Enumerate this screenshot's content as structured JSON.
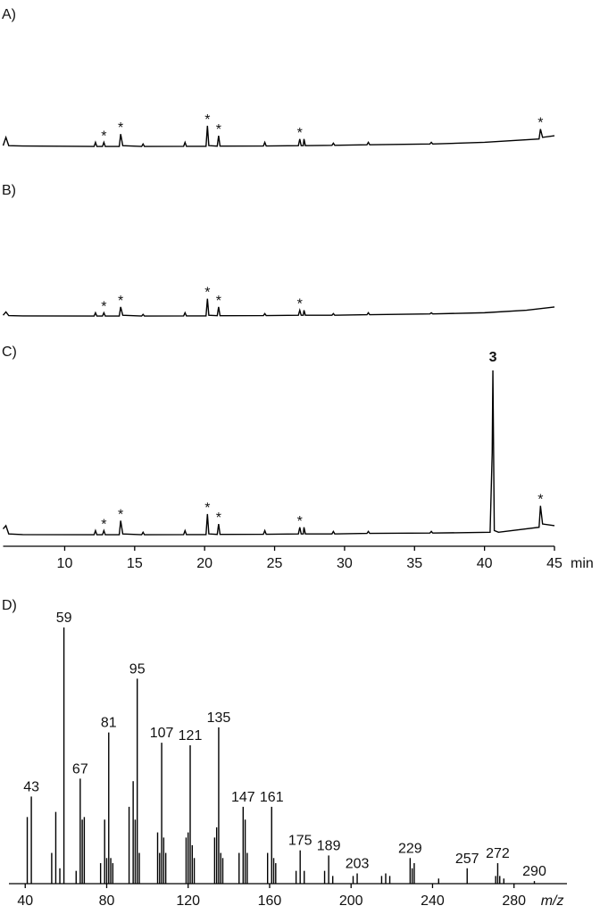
{
  "chart_data": [
    {
      "type": "line",
      "title": "A)",
      "xlim": [
        5.6,
        45
      ],
      "ylim": [
        0,
        100
      ],
      "x": [
        5.6,
        5.8,
        6.0,
        7,
        12.1,
        12.2,
        12.3,
        12.7,
        12.8,
        12.9,
        13.9,
        14.0,
        14.15,
        15.5,
        15.6,
        15.7,
        18.5,
        18.6,
        18.7,
        20.1,
        20.2,
        20.3,
        20.9,
        21.0,
        21.1,
        24.2,
        24.3,
        24.4,
        26.7,
        26.8,
        26.9,
        27.05,
        27.1,
        27.2,
        29.1,
        29.2,
        29.3,
        31.6,
        31.7,
        31.8,
        36.1,
        36.2,
        36.3,
        40,
        43.9,
        44.0,
        44.15,
        45
      ],
      "values": [
        1,
        6,
        1,
        0.8,
        0.5,
        3,
        0.5,
        0.5,
        3,
        0.5,
        0.5,
        8,
        1,
        0.5,
        2,
        0.5,
        0.6,
        3,
        0.6,
        0.6,
        13,
        1,
        0.7,
        7,
        0.7,
        0.8,
        3,
        0.8,
        1,
        5,
        1,
        1,
        5,
        1,
        1.2,
        2.5,
        1.2,
        1.5,
        3,
        1.5,
        2,
        3,
        2,
        3,
        5,
        11,
        6,
        7
      ],
      "color": "#000000",
      "annotations": [
        {
          "text": "*",
          "x": 12.8
        },
        {
          "text": "*",
          "x": 14.0
        },
        {
          "text": "*",
          "x": 20.2
        },
        {
          "text": "*",
          "x": 21.0
        },
        {
          "text": "*",
          "x": 26.8
        },
        {
          "text": "*",
          "x": 44.0
        }
      ]
    },
    {
      "type": "line",
      "title": "B)",
      "xlim": [
        5.6,
        45
      ],
      "ylim": [
        0,
        100
      ],
      "x": [
        5.6,
        5.8,
        6.0,
        7,
        12.1,
        12.2,
        12.3,
        12.7,
        12.8,
        12.9,
        13.9,
        14.0,
        14.15,
        15.5,
        15.6,
        15.7,
        18.5,
        18.6,
        18.7,
        20.1,
        20.2,
        20.3,
        20.9,
        21.0,
        21.1,
        24.2,
        24.3,
        24.4,
        26.7,
        26.8,
        26.9,
        27.05,
        27.1,
        27.2,
        29.1,
        29.2,
        29.3,
        31.6,
        31.7,
        31.8,
        36.1,
        36.2,
        36.3,
        40,
        43,
        45
      ],
      "values": [
        1,
        3,
        0.8,
        0.6,
        0.5,
        2.5,
        0.5,
        0.5,
        2.5,
        0.5,
        0.5,
        6,
        1,
        0.5,
        1.5,
        0.5,
        0.6,
        2.5,
        0.6,
        0.6,
        11,
        1,
        0.7,
        6,
        0.7,
        0.8,
        2,
        0.8,
        1,
        4,
        1,
        1,
        4,
        1,
        1,
        2,
        1,
        1.3,
        2.5,
        1.3,
        1.8,
        2.5,
        1.8,
        2.5,
        4,
        6
      ],
      "color": "#000000",
      "annotations": [
        {
          "text": "*",
          "x": 12.8
        },
        {
          "text": "*",
          "x": 14.0
        },
        {
          "text": "*",
          "x": 20.2
        },
        {
          "text": "*",
          "x": 21.0
        },
        {
          "text": "*",
          "x": 26.8
        }
      ]
    },
    {
      "type": "line",
      "title": "C)",
      "xlim": [
        5.6,
        45
      ],
      "ylim": [
        0,
        100
      ],
      "xticks": [
        10,
        15,
        20,
        25,
        30,
        35,
        40,
        45
      ],
      "xlabel": "min",
      "x": [
        5.6,
        5.8,
        6.0,
        7,
        12.1,
        12.2,
        12.3,
        12.7,
        12.8,
        12.9,
        13.9,
        14.0,
        14.15,
        15.5,
        15.6,
        15.7,
        18.5,
        18.6,
        18.7,
        20.1,
        20.2,
        20.3,
        20.9,
        21.0,
        21.1,
        24.2,
        24.3,
        24.4,
        26.7,
        26.8,
        26.9,
        27.05,
        27.1,
        27.2,
        29.1,
        29.2,
        29.3,
        31.6,
        31.7,
        31.8,
        36.1,
        36.2,
        36.3,
        40.4,
        40.55,
        40.6,
        40.7,
        41,
        43.9,
        44.0,
        44.15,
        45
      ],
      "values": [
        4,
        6,
        1,
        0.6,
        0.5,
        3,
        0.5,
        0.5,
        3,
        0.5,
        0.5,
        9,
        1,
        0.5,
        2,
        0.5,
        0.6,
        3,
        0.6,
        0.6,
        13,
        1,
        0.7,
        7,
        0.7,
        0.8,
        3,
        0.8,
        1,
        5,
        1,
        1,
        5,
        1,
        1,
        2.5,
        1,
        1.3,
        2.5,
        1.3,
        1.5,
        2.5,
        1.5,
        2,
        50,
        100,
        3,
        2,
        5,
        18,
        7,
        6
      ],
      "color": "#000000",
      "annotations": [
        {
          "text": "*",
          "x": 12.8
        },
        {
          "text": "*",
          "x": 14.0
        },
        {
          "text": "*",
          "x": 20.2
        },
        {
          "text": "*",
          "x": 21.0
        },
        {
          "text": "*",
          "x": 26.8
        },
        {
          "text": "3",
          "x": 40.6,
          "bold": true
        },
        {
          "text": "*",
          "x": 44.0
        }
      ]
    },
    {
      "type": "bar",
      "title": "D)",
      "xlim": [
        32,
        306
      ],
      "ylim": [
        0,
        100
      ],
      "xticks": [
        40,
        80,
        120,
        160,
        200,
        240,
        280
      ],
      "xlabel": "m/z",
      "color": "#000000",
      "x": [
        41,
        43,
        53,
        55,
        57,
        59,
        65,
        67,
        68,
        69,
        77,
        79,
        80,
        81,
        82,
        83,
        91,
        93,
        94,
        95,
        96,
        105,
        106,
        107,
        108,
        109,
        119,
        120,
        121,
        122,
        123,
        133,
        134,
        135,
        136,
        137,
        145,
        147,
        148,
        149,
        159,
        161,
        162,
        163,
        173,
        175,
        177,
        187,
        189,
        191,
        201,
        203,
        215,
        217,
        219,
        229,
        230,
        231,
        243,
        257,
        271,
        272,
        273,
        275,
        290
      ],
      "values": [
        26,
        34,
        12,
        28,
        6,
        100,
        5,
        41,
        25,
        26,
        8,
        25,
        10,
        59,
        10,
        8,
        30,
        40,
        25,
        80,
        12,
        20,
        12,
        55,
        18,
        12,
        18,
        20,
        54,
        15,
        10,
        18,
        22,
        61,
        12,
        10,
        12,
        30,
        25,
        12,
        12,
        30,
        10,
        8,
        5,
        13,
        5,
        5,
        11,
        3,
        3,
        4,
        3,
        4,
        3,
        10,
        6,
        8,
        2,
        6,
        3,
        8,
        3,
        2,
        1
      ],
      "labels": [
        null,
        43,
        null,
        null,
        null,
        59,
        null,
        67,
        null,
        null,
        null,
        null,
        null,
        81,
        null,
        null,
        null,
        null,
        null,
        95,
        null,
        null,
        null,
        107,
        null,
        null,
        null,
        null,
        121,
        null,
        null,
        null,
        null,
        135,
        null,
        null,
        null,
        147,
        null,
        null,
        null,
        161,
        null,
        null,
        null,
        175,
        null,
        null,
        189,
        null,
        null,
        203,
        null,
        null,
        null,
        229,
        null,
        null,
        null,
        257,
        null,
        272,
        null,
        null,
        290
      ]
    }
  ]
}
